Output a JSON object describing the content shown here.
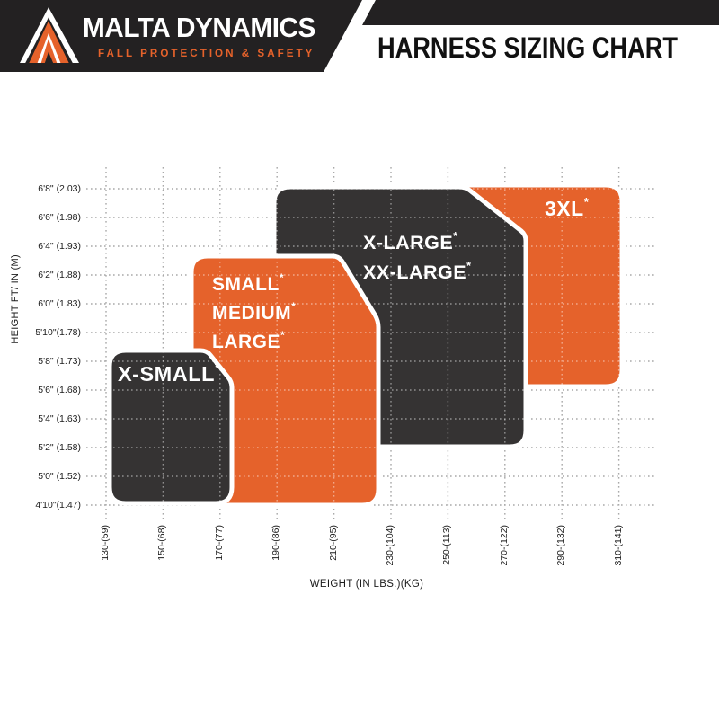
{
  "banner": {
    "brand": "MALTA DYNAMICS",
    "tagline": "FALL PROTECTION & SAFETY",
    "logo": "mountain-peak-logo"
  },
  "header": {
    "title": "HARNESS SIZING CHART"
  },
  "colors": {
    "orange": "#E5622B",
    "dark_shape": "#353333",
    "banner_black": "#232122",
    "grid": "#A9A9A9",
    "grid_overlay": "rgba(255,255,255,0.45)",
    "label_white": "#FFFFFF"
  },
  "chart_data": {
    "type": "area",
    "title": "HARNESS SIZING CHART",
    "xlabel": "WEIGHT (IN LBS.)(KG)",
    "ylabel": "HEIGHT FT/ IN (M)",
    "grid": "dotted",
    "legend": "none",
    "x_ticks": [
      "130-(59)",
      "150-(68)",
      "170-(77)",
      "190-(86)",
      "210-(95)",
      "230-(104)",
      "250-(113)",
      "270-(122)",
      "290-(132)",
      "310-(141)"
    ],
    "y_ticks": [
      "6'8\" (2.03)",
      "6'6\" (1.98)",
      "6'4\" (1.93)",
      "6'2\" (1.88)",
      "6'0\" (1.83)",
      "5'10\"(1.78)",
      "5'8\" (1.73)",
      "5'6\" (1.68)",
      "5'4\" (1.63)",
      "5'2\" (1.58)",
      "5'0\" (1.52)",
      "4'10\"(1.47)"
    ],
    "regions": [
      {
        "id": "3xl",
        "lines": [
          "3XL"
        ],
        "mark": "*",
        "color_key": "orange",
        "approx_weight_lbs": [
          250,
          310
        ],
        "approx_height_ftin": [
          "5'6\"",
          "6'8\""
        ]
      },
      {
        "id": "xlarge-xxlarge",
        "lines": [
          "X-LARGE",
          "XX-LARGE"
        ],
        "mark": "*",
        "color_key": "dark_shape",
        "approx_weight_lbs": [
          190,
          275
        ],
        "approx_height_ftin": [
          "5'2\"",
          "6'8\""
        ]
      },
      {
        "id": "small-medium-large",
        "lines": [
          "SMALL",
          "MEDIUM",
          "LARGE"
        ],
        "mark": "*",
        "color_key": "orange",
        "approx_weight_lbs": [
          160,
          226
        ],
        "approx_height_ftin": [
          "4'10\"",
          "6'3\""
        ]
      },
      {
        "id": "xsmall",
        "lines": [
          "X-SMALL"
        ],
        "mark": "*",
        "color_key": "dark_shape",
        "approx_weight_lbs": [
          131,
          174
        ],
        "approx_height_ftin": [
          "4'10\"",
          "5'9\""
        ]
      }
    ]
  }
}
